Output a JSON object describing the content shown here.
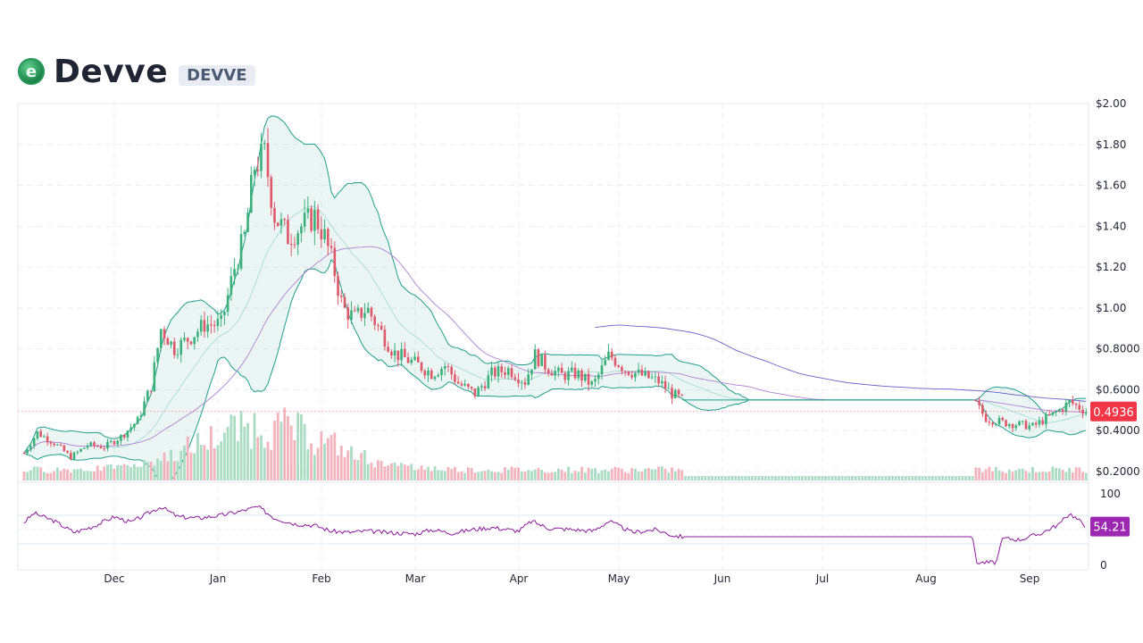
{
  "header": {
    "name": "Devve",
    "symbol": "DEVVE",
    "logo_letter": "e",
    "logo_icon": "devve-coin-icon"
  },
  "colors": {
    "up": "#3bb07a",
    "down": "#e0576a",
    "band": "#1f9e8a",
    "ma_long": "#6c5fc7",
    "ma_mid": "#b07fd6",
    "rsi": "#8b1a9b",
    "price_badge": "#f23645",
    "rsi_badge": "#9c27b0"
  },
  "chart_data": {
    "type": "candlestick",
    "title": "",
    "currency": "USD",
    "y_ticks": [
      "$2.00",
      "$1.80",
      "$1.60",
      "$1.40",
      "$1.20",
      "$1.00",
      "$0.8000",
      "$0.6000",
      "$0.4000",
      "$0.2000"
    ],
    "ylim": [
      0.2,
      2.0
    ],
    "x_ticks": [
      "Dec",
      "Jan",
      "Feb",
      "Mar",
      "Apr",
      "May",
      "Jun",
      "Jul",
      "Aug",
      "Sep"
    ],
    "last_price": "0.4936",
    "price_points": [
      [
        "Nov 05",
        0.29
      ],
      [
        "Nov 09",
        0.39
      ],
      [
        "Nov 14",
        0.34
      ],
      [
        "Nov 19",
        0.27
      ],
      [
        "Nov 24",
        0.33
      ],
      [
        "Nov 29",
        0.32
      ],
      [
        "Dec 03",
        0.37
      ],
      [
        "Dec 08",
        0.45
      ],
      [
        "Dec 12",
        0.62
      ],
      [
        "Dec 15",
        0.9
      ],
      [
        "Dec 19",
        0.8
      ],
      [
        "Dec 24",
        0.86
      ],
      [
        "Dec 28",
        0.92
      ],
      [
        "Jan 02",
        0.92
      ],
      [
        "Jan 06",
        1.2
      ],
      [
        "Jan 09",
        1.35
      ],
      [
        "Jan 12",
        1.7
      ],
      [
        "Jan 15",
        1.75
      ],
      [
        "Jan 18",
        1.45
      ],
      [
        "Jan 22",
        1.35
      ],
      [
        "Jan 26",
        1.4
      ],
      [
        "Jan 30",
        1.45
      ],
      [
        "Feb 02",
        1.35
      ],
      [
        "Feb 05",
        1.2
      ],
      [
        "Feb 08",
        1.0
      ],
      [
        "Feb 12",
        0.95
      ],
      [
        "Feb 16",
        1.0
      ],
      [
        "Feb 20",
        0.9
      ],
      [
        "Feb 25",
        0.78
      ],
      [
        "Mar 02",
        0.72
      ],
      [
        "Mar 06",
        0.68
      ],
      [
        "Mar 10",
        0.72
      ],
      [
        "Mar 14",
        0.63
      ],
      [
        "Mar 19",
        0.58
      ],
      [
        "Mar 24",
        0.68
      ],
      [
        "Mar 29",
        0.7
      ],
      [
        "Apr 03",
        0.64
      ],
      [
        "Apr 06",
        0.77
      ],
      [
        "Apr 09",
        0.72
      ],
      [
        "Apr 14",
        0.67
      ],
      [
        "Apr 19",
        0.68
      ],
      [
        "Apr 24",
        0.62
      ],
      [
        "Apr 29",
        0.77
      ],
      [
        "May 03",
        0.7
      ],
      [
        "May 08",
        0.67
      ],
      [
        "May 13",
        0.64
      ],
      [
        "May 17",
        0.58
      ],
      [
        "May 20",
        0.55
      ],
      [
        "Aug 15",
        0.55
      ],
      [
        "Aug 19",
        0.46
      ],
      [
        "Aug 24",
        0.44
      ],
      [
        "Aug 29",
        0.43
      ],
      [
        "Sep 02",
        0.42
      ],
      [
        "Sep 06",
        0.46
      ],
      [
        "Sep 10",
        0.5
      ],
      [
        "Sep 13",
        0.54
      ],
      [
        "Sep 18",
        0.4936
      ]
    ],
    "indicators": [
      "Bollinger Bands",
      "Moving Average",
      "Volume",
      "RSI"
    ],
    "volume_peak_date": "Jan 15",
    "rsi": {
      "y_ticks": [
        "100",
        "0"
      ],
      "ylim": [
        0,
        100
      ],
      "upper_level": 70,
      "lower_level": 30,
      "last": "54.21",
      "points": [
        [
          "Nov 05",
          60
        ],
        [
          "Nov 08",
          73
        ],
        [
          "Nov 14",
          62
        ],
        [
          "Nov 20",
          46
        ],
        [
          "Nov 26",
          55
        ],
        [
          "Dec 01",
          68
        ],
        [
          "Dec 06",
          60
        ],
        [
          "Dec 12",
          75
        ],
        [
          "Dec 15",
          82
        ],
        [
          "Dec 20",
          68
        ],
        [
          "Dec 26",
          66
        ],
        [
          "Jan 02",
          70
        ],
        [
          "Jan 08",
          76
        ],
        [
          "Jan 13",
          82
        ],
        [
          "Jan 18",
          66
        ],
        [
          "Jan 24",
          58
        ],
        [
          "Jan 30",
          56
        ],
        [
          "Feb 04",
          48
        ],
        [
          "Feb 10",
          46
        ],
        [
          "Feb 16",
          48
        ],
        [
          "Feb 22",
          46
        ],
        [
          "Mar 01",
          44
        ],
        [
          "Mar 06",
          50
        ],
        [
          "Mar 12",
          45
        ],
        [
          "Mar 18",
          50
        ],
        [
          "Mar 24",
          53
        ],
        [
          "Apr 01",
          48
        ],
        [
          "Apr 05",
          62
        ],
        [
          "Apr 10",
          52
        ],
        [
          "Apr 18",
          50
        ],
        [
          "Apr 24",
          48
        ],
        [
          "Apr 29",
          62
        ],
        [
          "May 05",
          46
        ],
        [
          "May 12",
          50
        ],
        [
          "May 17",
          42
        ],
        [
          "May 20",
          40
        ],
        [
          "Aug 15",
          40
        ],
        [
          "Aug 16",
          4
        ],
        [
          "Aug 22",
          4
        ],
        [
          "Aug 24",
          38
        ],
        [
          "Aug 29",
          36
        ],
        [
          "Sep 04",
          44
        ],
        [
          "Sep 10",
          58
        ],
        [
          "Sep 13",
          73
        ],
        [
          "Sep 18",
          54.21
        ]
      ]
    }
  }
}
